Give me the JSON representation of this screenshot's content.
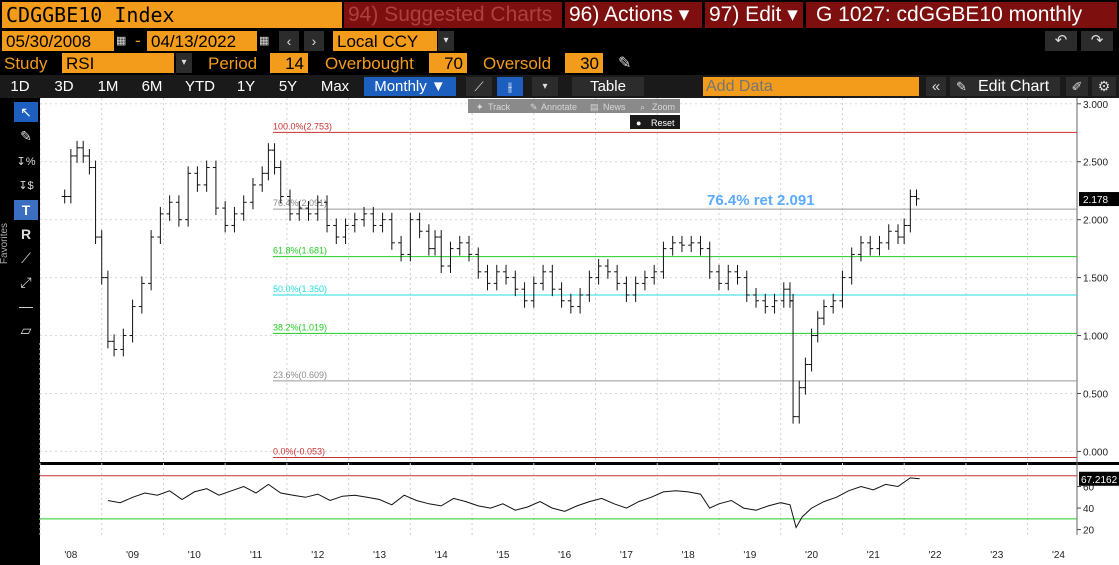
{
  "header": {
    "ticker": "CDGGBE10 Index",
    "suggested": "94) Suggested Charts",
    "actions": "96) Actions ▾",
    "edit": "97) Edit ▾",
    "chart_id": "G 1027: cdGGBE10 monthly"
  },
  "dates": {
    "start": "05/30/2008",
    "sep": "-",
    "end": "04/13/2022",
    "currency": "Local CCY"
  },
  "study": {
    "study_label": "Study",
    "study_value": "RSI",
    "period_label": "Period",
    "period_value": "14",
    "overbought_label": "Overbought",
    "overbought_value": "70",
    "oversold_label": "Oversold",
    "oversold_value": "30"
  },
  "timeframes": [
    "1D",
    "3D",
    "1M",
    "6M",
    "YTD",
    "1Y",
    "5Y",
    "Max"
  ],
  "toolbar": {
    "frequency": "Monthly ▼",
    "table": "Table",
    "add_data_placeholder": "Add Data",
    "edit_chart": "Edit Chart"
  },
  "mini_toolbar": {
    "track": "Track",
    "annotate": "Annotate",
    "news": "News",
    "zoom": "Zoom",
    "reset": "Reset"
  },
  "favorites_label": "Favorites",
  "colors": {
    "orange": "#f39b1a",
    "maroon": "#7d0f0f",
    "highlight_blue": "#5aaaff",
    "fib_red": "#c83232",
    "fib_green": "#22cc22",
    "fib_cyan": "#22dddd",
    "fib_gray": "#9a9a9a"
  },
  "chart_data": [
    {
      "type": "ohlc",
      "title": "",
      "y_ticks": [
        "3.000",
        "2.500",
        "2.000",
        "1.500",
        "1.000",
        "0.500",
        "0.000"
      ],
      "ylim": [
        -0.1,
        3.05
      ],
      "last_value": "2.178",
      "x_ticks": [
        "'08",
        "'09",
        "'10",
        "'11",
        "'12",
        "'13",
        "'14",
        "'15",
        "'16",
        "'17",
        "'18",
        "'19",
        "'20",
        "'21",
        "'22",
        "'23",
        "'24"
      ],
      "xlim": [
        2008.0,
        2024.8
      ],
      "fib_levels": [
        {
          "label": "100.0%(2.753)",
          "value": 2.753,
          "color": "red"
        },
        {
          "label": "76.4%(2.091)",
          "value": 2.091,
          "color": "gray"
        },
        {
          "label": "61.8%(1.681)",
          "value": 1.681,
          "color": "green"
        },
        {
          "label": "50.0%(1.350)",
          "value": 1.35,
          "color": "cyan"
        },
        {
          "label": "38.2%(1.019)",
          "value": 1.019,
          "color": "green"
        },
        {
          "label": "23.6%(0.609)",
          "value": 0.609,
          "color": "gray"
        },
        {
          "label": "0.0%(-0.053)",
          "value": -0.053,
          "color": "red"
        }
      ],
      "annotation": "76.4% ret 2.091",
      "series": [
        {
          "x": 2008.4,
          "y": 2.2
        },
        {
          "x": 2008.5,
          "y": 2.55
        },
        {
          "x": 2008.6,
          "y": 2.62
        },
        {
          "x": 2008.7,
          "y": 2.55
        },
        {
          "x": 2008.8,
          "y": 2.45
        },
        {
          "x": 2008.9,
          "y": 1.85
        },
        {
          "x": 2009.0,
          "y": 1.5
        },
        {
          "x": 2009.1,
          "y": 0.95
        },
        {
          "x": 2009.2,
          "y": 0.88
        },
        {
          "x": 2009.35,
          "y": 1.0
        },
        {
          "x": 2009.5,
          "y": 1.25
        },
        {
          "x": 2009.65,
          "y": 1.45
        },
        {
          "x": 2009.8,
          "y": 1.85
        },
        {
          "x": 2009.95,
          "y": 2.05
        },
        {
          "x": 2010.1,
          "y": 2.15
        },
        {
          "x": 2010.25,
          "y": 2.0
        },
        {
          "x": 2010.4,
          "y": 2.4
        },
        {
          "x": 2010.55,
          "y": 2.3
        },
        {
          "x": 2010.7,
          "y": 2.45
        },
        {
          "x": 2010.85,
          "y": 2.1
        },
        {
          "x": 2011.0,
          "y": 1.95
        },
        {
          "x": 2011.15,
          "y": 2.05
        },
        {
          "x": 2011.3,
          "y": 2.15
        },
        {
          "x": 2011.45,
          "y": 2.3
        },
        {
          "x": 2011.6,
          "y": 2.4
        },
        {
          "x": 2011.7,
          "y": 2.6
        },
        {
          "x": 2011.8,
          "y": 2.45
        },
        {
          "x": 2011.9,
          "y": 2.2
        },
        {
          "x": 2012.05,
          "y": 2.05
        },
        {
          "x": 2012.2,
          "y": 2.1
        },
        {
          "x": 2012.35,
          "y": 2.05
        },
        {
          "x": 2012.5,
          "y": 2.15
        },
        {
          "x": 2012.65,
          "y": 1.95
        },
        {
          "x": 2012.8,
          "y": 1.85
        },
        {
          "x": 2012.95,
          "y": 1.95
        },
        {
          "x": 2013.1,
          "y": 2.0
        },
        {
          "x": 2013.25,
          "y": 2.05
        },
        {
          "x": 2013.4,
          "y": 1.95
        },
        {
          "x": 2013.55,
          "y": 2.0
        },
        {
          "x": 2013.7,
          "y": 1.8
        },
        {
          "x": 2013.85,
          "y": 1.7
        },
        {
          "x": 2014.0,
          "y": 2.0
        },
        {
          "x": 2014.15,
          "y": 1.9
        },
        {
          "x": 2014.3,
          "y": 1.75
        },
        {
          "x": 2014.4,
          "y": 1.85
        },
        {
          "x": 2014.5,
          "y": 1.6
        },
        {
          "x": 2014.65,
          "y": 1.75
        },
        {
          "x": 2014.8,
          "y": 1.8
        },
        {
          "x": 2014.95,
          "y": 1.7
        },
        {
          "x": 2015.1,
          "y": 1.55
        },
        {
          "x": 2015.25,
          "y": 1.45
        },
        {
          "x": 2015.4,
          "y": 1.55
        },
        {
          "x": 2015.55,
          "y": 1.5
        },
        {
          "x": 2015.7,
          "y": 1.4
        },
        {
          "x": 2015.85,
          "y": 1.3
        },
        {
          "x": 2016.0,
          "y": 1.45
        },
        {
          "x": 2016.15,
          "y": 1.55
        },
        {
          "x": 2016.3,
          "y": 1.4
        },
        {
          "x": 2016.45,
          "y": 1.3
        },
        {
          "x": 2016.6,
          "y": 1.25
        },
        {
          "x": 2016.75,
          "y": 1.35
        },
        {
          "x": 2016.9,
          "y": 1.5
        },
        {
          "x": 2017.05,
          "y": 1.6
        },
        {
          "x": 2017.2,
          "y": 1.55
        },
        {
          "x": 2017.35,
          "y": 1.45
        },
        {
          "x": 2017.5,
          "y": 1.35
        },
        {
          "x": 2017.65,
          "y": 1.45
        },
        {
          "x": 2017.8,
          "y": 1.5
        },
        {
          "x": 2017.95,
          "y": 1.55
        },
        {
          "x": 2018.1,
          "y": 1.75
        },
        {
          "x": 2018.25,
          "y": 1.8
        },
        {
          "x": 2018.4,
          "y": 1.78
        },
        {
          "x": 2018.55,
          "y": 1.8
        },
        {
          "x": 2018.7,
          "y": 1.75
        },
        {
          "x": 2018.85,
          "y": 1.55
        },
        {
          "x": 2019.0,
          "y": 1.45
        },
        {
          "x": 2019.15,
          "y": 1.55
        },
        {
          "x": 2019.3,
          "y": 1.5
        },
        {
          "x": 2019.45,
          "y": 1.35
        },
        {
          "x": 2019.6,
          "y": 1.3
        },
        {
          "x": 2019.75,
          "y": 1.25
        },
        {
          "x": 2019.9,
          "y": 1.3
        },
        {
          "x": 2020.05,
          "y": 1.4
        },
        {
          "x": 2020.15,
          "y": 1.3
        },
        {
          "x": 2020.2,
          "y": 0.3
        },
        {
          "x": 2020.3,
          "y": 0.55
        },
        {
          "x": 2020.4,
          "y": 0.75
        },
        {
          "x": 2020.5,
          "y": 1.0
        },
        {
          "x": 2020.6,
          "y": 1.15
        },
        {
          "x": 2020.7,
          "y": 1.25
        },
        {
          "x": 2020.85,
          "y": 1.3
        },
        {
          "x": 2021.0,
          "y": 1.5
        },
        {
          "x": 2021.15,
          "y": 1.7
        },
        {
          "x": 2021.3,
          "y": 1.8
        },
        {
          "x": 2021.45,
          "y": 1.75
        },
        {
          "x": 2021.6,
          "y": 1.8
        },
        {
          "x": 2021.75,
          "y": 1.9
        },
        {
          "x": 2021.9,
          "y": 1.85
        },
        {
          "x": 2022.0,
          "y": 1.95
        },
        {
          "x": 2022.1,
          "y": 2.2
        },
        {
          "x": 2022.2,
          "y": 2.18
        }
      ]
    },
    {
      "type": "line",
      "title": "",
      "y_ticks": [
        "60",
        "40",
        "20"
      ],
      "ylim": [
        15,
        80
      ],
      "last_value": "67.2162",
      "overbought": 70,
      "oversold": 30,
      "series": [
        {
          "x": 2009.1,
          "y": 47
        },
        {
          "x": 2009.3,
          "y": 45
        },
        {
          "x": 2009.5,
          "y": 50
        },
        {
          "x": 2009.7,
          "y": 54
        },
        {
          "x": 2009.9,
          "y": 52
        },
        {
          "x": 2010.1,
          "y": 56
        },
        {
          "x": 2010.3,
          "y": 48
        },
        {
          "x": 2010.5,
          "y": 55
        },
        {
          "x": 2010.7,
          "y": 58
        },
        {
          "x": 2010.9,
          "y": 52
        },
        {
          "x": 2011.1,
          "y": 56
        },
        {
          "x": 2011.3,
          "y": 60
        },
        {
          "x": 2011.5,
          "y": 54
        },
        {
          "x": 2011.7,
          "y": 62
        },
        {
          "x": 2011.9,
          "y": 54
        },
        {
          "x": 2012.1,
          "y": 52
        },
        {
          "x": 2012.3,
          "y": 50
        },
        {
          "x": 2012.5,
          "y": 53
        },
        {
          "x": 2012.7,
          "y": 47
        },
        {
          "x": 2012.9,
          "y": 51
        },
        {
          "x": 2013.1,
          "y": 52
        },
        {
          "x": 2013.3,
          "y": 50
        },
        {
          "x": 2013.5,
          "y": 48
        },
        {
          "x": 2013.7,
          "y": 43
        },
        {
          "x": 2013.9,
          "y": 52
        },
        {
          "x": 2014.1,
          "y": 47
        },
        {
          "x": 2014.3,
          "y": 44
        },
        {
          "x": 2014.5,
          "y": 42
        },
        {
          "x": 2014.7,
          "y": 49
        },
        {
          "x": 2014.9,
          "y": 46
        },
        {
          "x": 2015.1,
          "y": 42
        },
        {
          "x": 2015.3,
          "y": 40
        },
        {
          "x": 2015.5,
          "y": 44
        },
        {
          "x": 2015.7,
          "y": 38
        },
        {
          "x": 2015.9,
          "y": 41
        },
        {
          "x": 2016.1,
          "y": 46
        },
        {
          "x": 2016.3,
          "y": 40
        },
        {
          "x": 2016.5,
          "y": 37
        },
        {
          "x": 2016.7,
          "y": 42
        },
        {
          "x": 2016.9,
          "y": 46
        },
        {
          "x": 2017.1,
          "y": 49
        },
        {
          "x": 2017.3,
          "y": 44
        },
        {
          "x": 2017.5,
          "y": 40
        },
        {
          "x": 2017.7,
          "y": 46
        },
        {
          "x": 2017.9,
          "y": 50
        },
        {
          "x": 2018.1,
          "y": 55
        },
        {
          "x": 2018.3,
          "y": 56
        },
        {
          "x": 2018.5,
          "y": 55
        },
        {
          "x": 2018.7,
          "y": 53
        },
        {
          "x": 2018.85,
          "y": 40
        },
        {
          "x": 2019.0,
          "y": 44
        },
        {
          "x": 2019.2,
          "y": 47
        },
        {
          "x": 2019.4,
          "y": 40
        },
        {
          "x": 2019.6,
          "y": 38
        },
        {
          "x": 2019.8,
          "y": 42
        },
        {
          "x": 2020.0,
          "y": 45
        },
        {
          "x": 2020.15,
          "y": 43
        },
        {
          "x": 2020.25,
          "y": 22
        },
        {
          "x": 2020.35,
          "y": 32
        },
        {
          "x": 2020.5,
          "y": 40
        },
        {
          "x": 2020.7,
          "y": 46
        },
        {
          "x": 2020.9,
          "y": 50
        },
        {
          "x": 2021.1,
          "y": 56
        },
        {
          "x": 2021.3,
          "y": 60
        },
        {
          "x": 2021.5,
          "y": 57
        },
        {
          "x": 2021.7,
          "y": 62
        },
        {
          "x": 2021.9,
          "y": 60
        },
        {
          "x": 2022.1,
          "y": 68
        },
        {
          "x": 2022.25,
          "y": 67.2
        }
      ]
    }
  ]
}
